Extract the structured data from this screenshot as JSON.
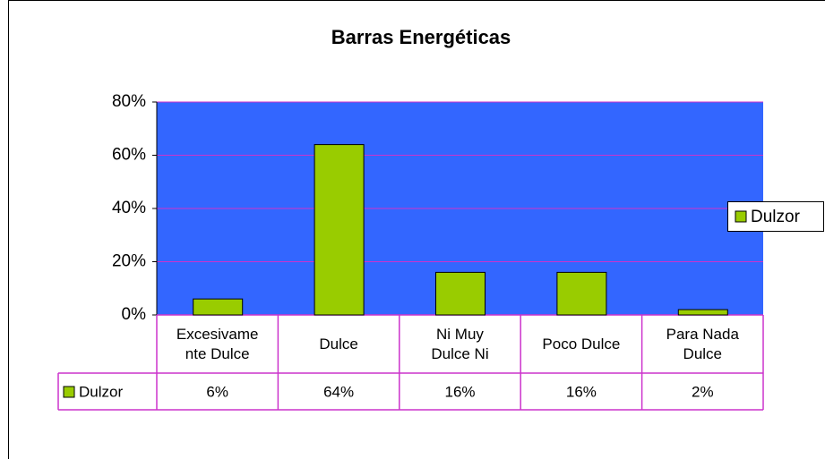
{
  "chart_data": {
    "type": "bar",
    "title": "Barras Energéticas",
    "categories": [
      "Excesivamente Dulce",
      "Dulce",
      "Ni Muy Dulce Ni",
      "Poco Dulce",
      "Para Nada Dulce"
    ],
    "series": [
      {
        "name": "Dulzor",
        "color": "#99cc00",
        "values": [
          6,
          64,
          16,
          16,
          2
        ],
        "value_labels": [
          "6%",
          "64%",
          "16%",
          "16%",
          "2%"
        ]
      }
    ],
    "ylim": [
      0,
      80
    ],
    "yticks": [
      {
        "value": 0,
        "label": "0%"
      },
      {
        "value": 20,
        "label": "20%"
      },
      {
        "value": 40,
        "label": "40%"
      },
      {
        "value": 60,
        "label": "60%"
      },
      {
        "value": 80,
        "label": "80%"
      }
    ],
    "grid": true,
    "legend": "right",
    "plot_background": "#3366ff",
    "grid_color": "#cc33cc",
    "title_color": "#99cc00"
  }
}
